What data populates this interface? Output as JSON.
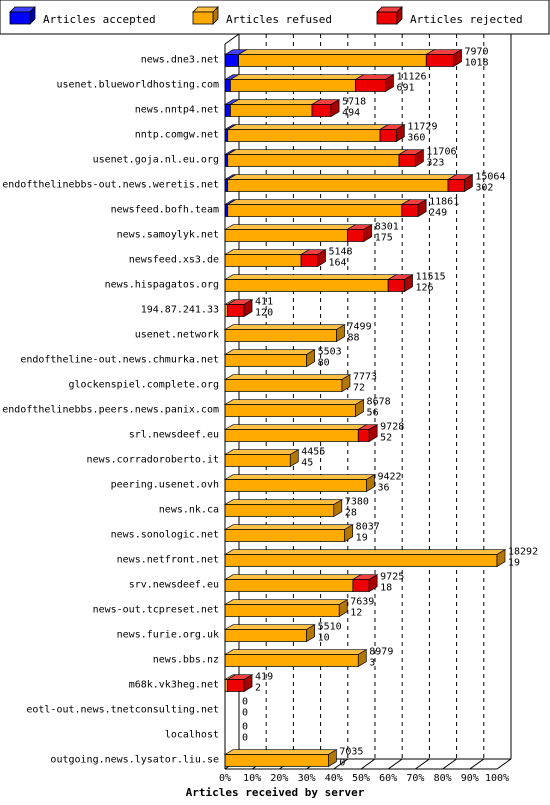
{
  "chart_data": {
    "type": "bar",
    "orientation": "horizontal",
    "stacked": true,
    "xlabel": "Articles received by server",
    "xlim": [
      0,
      100
    ],
    "x_ticks": [
      "0%",
      "10%",
      "20%",
      "30%",
      "40%",
      "50%",
      "60%",
      "70%",
      "80%",
      "90%",
      "100%"
    ],
    "legend_position": "top",
    "series": [
      {
        "key": "accepted",
        "name": "Articles accepted",
        "color": "#0000ff"
      },
      {
        "key": "refused",
        "name": "Articles refused",
        "color": "#ffaa00"
      },
      {
        "key": "rejected",
        "name": "Articles rejected",
        "color": "#ee0000"
      }
    ],
    "rows": [
      {
        "server": "news.dne3.net",
        "total": "7970",
        "refused": "1018",
        "pct": [
          5,
          69,
          10
        ]
      },
      {
        "server": "usenet.blueworldhosting.com",
        "total": "11126",
        "refused": "691",
        "pct": [
          2,
          46,
          11
        ]
      },
      {
        "server": "news.nntp4.net",
        "total": "5718",
        "refused": "494",
        "pct": [
          2,
          30,
          7
        ]
      },
      {
        "server": "nntp.comgw.net",
        "total": "11729",
        "refused": "360",
        "pct": [
          1,
          56,
          6
        ]
      },
      {
        "server": "usenet.goja.nl.eu.org",
        "total": "11706",
        "refused": "323",
        "pct": [
          1,
          63,
          6
        ]
      },
      {
        "server": "endofthelinebbs-out.news.weretis.net",
        "total": "15064",
        "refused": "302",
        "pct": [
          1,
          81,
          6
        ]
      },
      {
        "server": "newsfeed.bofh.team",
        "total": "11861",
        "refused": "249",
        "pct": [
          1,
          64,
          6
        ]
      },
      {
        "server": "news.samoylyk.net",
        "total": "8301",
        "refused": "175",
        "pct": [
          0,
          45,
          6
        ]
      },
      {
        "server": "newsfeed.xs3.de",
        "total": "5148",
        "refused": "164",
        "pct": [
          0,
          28,
          6
        ]
      },
      {
        "server": "news.hispagatos.org",
        "total": "11515",
        "refused": "126",
        "pct": [
          0,
          60,
          6
        ]
      },
      {
        "server": "194.87.241.33",
        "total": "411",
        "refused": "120",
        "pct": [
          0,
          1,
          6
        ]
      },
      {
        "server": "usenet.network",
        "total": "7499",
        "refused": "88",
        "pct": [
          0,
          41,
          0
        ]
      },
      {
        "server": "endoftheline-out.news.chmurka.net",
        "total": "5503",
        "refused": "80",
        "pct": [
          0,
          30,
          0
        ]
      },
      {
        "server": "glockenspiel.complete.org",
        "total": "7773",
        "refused": "72",
        "pct": [
          0,
          43,
          0
        ]
      },
      {
        "server": "endofthelinebbs.peers.news.panix.com",
        "total": "8678",
        "refused": "56",
        "pct": [
          0,
          48,
          0
        ]
      },
      {
        "server": "srl.newsdeef.eu",
        "total": "9728",
        "refused": "52",
        "pct": [
          0,
          49,
          4
        ]
      },
      {
        "server": "news.corradoroberto.it",
        "total": "4455",
        "refused": "45",
        "pct": [
          0,
          24,
          0
        ]
      },
      {
        "server": "peering.usenet.ovh",
        "total": "9422",
        "refused": "36",
        "pct": [
          0,
          52,
          0
        ]
      },
      {
        "server": "news.nk.ca",
        "total": "7380",
        "refused": "28",
        "pct": [
          0,
          40,
          0
        ]
      },
      {
        "server": "news.sonologic.net",
        "total": "8037",
        "refused": "19",
        "pct": [
          0,
          44,
          0
        ]
      },
      {
        "server": "news.netfront.net",
        "total": "18292",
        "refused": "19",
        "pct": [
          0,
          100,
          0
        ]
      },
      {
        "server": "srv.newsdeef.eu",
        "total": "9725",
        "refused": "18",
        "pct": [
          0,
          47,
          6
        ]
      },
      {
        "server": "news-out.tcpreset.net",
        "total": "7639",
        "refused": "12",
        "pct": [
          0,
          42,
          0
        ]
      },
      {
        "server": "news.furie.org.uk",
        "total": "5510",
        "refused": "10",
        "pct": [
          0,
          30,
          0
        ]
      },
      {
        "server": "news.bbs.nz",
        "total": "8979",
        "refused": "3",
        "pct": [
          0,
          49,
          0
        ]
      },
      {
        "server": "m68k.vk3heg.net",
        "total": "419",
        "refused": "2",
        "pct": [
          0,
          1,
          6
        ]
      },
      {
        "server": "eotl-out.news.tnetconsulting.net",
        "total": "0",
        "refused": "0",
        "pct": [
          0,
          0,
          0
        ]
      },
      {
        "server": "localhost",
        "total": "0",
        "refused": "0",
        "pct": [
          0,
          0,
          0
        ]
      },
      {
        "server": "outgoing.news.lysator.liu.se",
        "total": "7035",
        "refused": "0",
        "pct": [
          0,
          38,
          0
        ]
      }
    ]
  }
}
